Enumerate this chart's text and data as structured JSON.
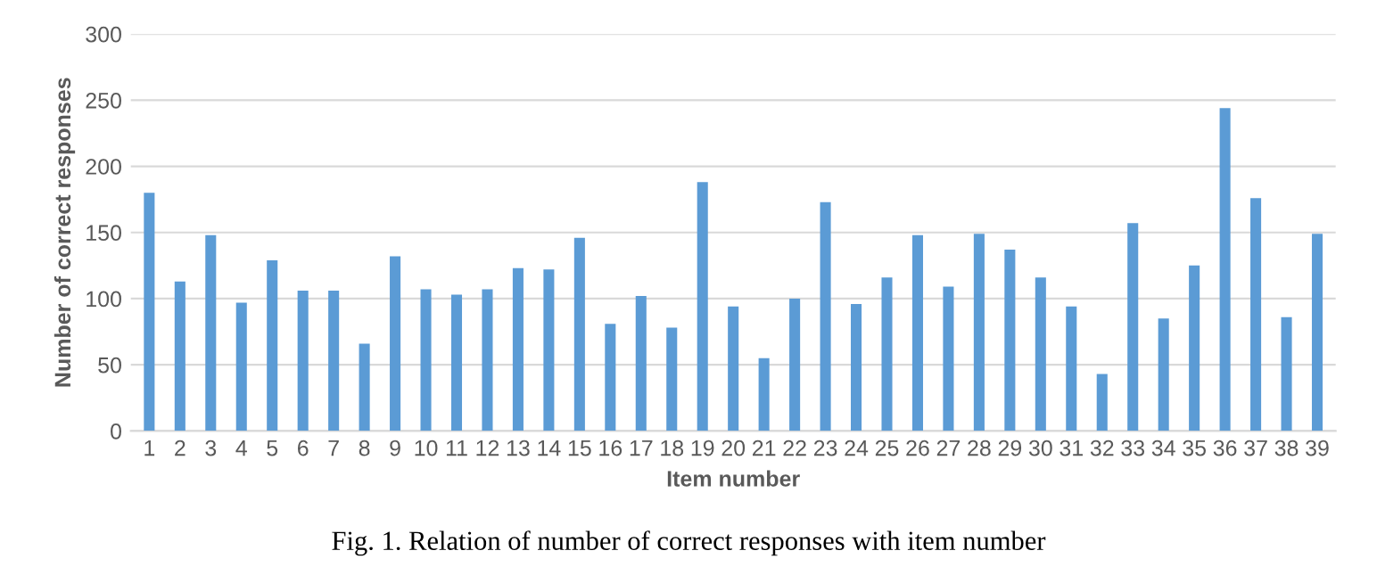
{
  "chart_data": {
    "type": "bar",
    "xlabel": "Item number",
    "ylabel": "Number of correct responses",
    "categories": [
      "1",
      "2",
      "3",
      "4",
      "5",
      "6",
      "7",
      "8",
      "9",
      "10",
      "11",
      "12",
      "13",
      "14",
      "15",
      "16",
      "17",
      "18",
      "19",
      "20",
      "21",
      "22",
      "23",
      "24",
      "25",
      "26",
      "27",
      "28",
      "29",
      "30",
      "31",
      "32",
      "33",
      "34",
      "35",
      "36",
      "37",
      "38",
      "39"
    ],
    "values": [
      180,
      113,
      148,
      97,
      129,
      106,
      106,
      66,
      132,
      107,
      103,
      107,
      123,
      122,
      146,
      81,
      102,
      78,
      188,
      94,
      55,
      100,
      173,
      96,
      116,
      148,
      109,
      149,
      137,
      116,
      94,
      43,
      157,
      85,
      125,
      244,
      176,
      86,
      149
    ],
    "color": "#5b9bd5",
    "ylim": [
      0,
      300
    ],
    "yticks": [
      0,
      50,
      100,
      150,
      200,
      250,
      300
    ],
    "grid": "y",
    "annotations": [
      "Fig. 1. Relation of number of correct responses with item number"
    ]
  }
}
